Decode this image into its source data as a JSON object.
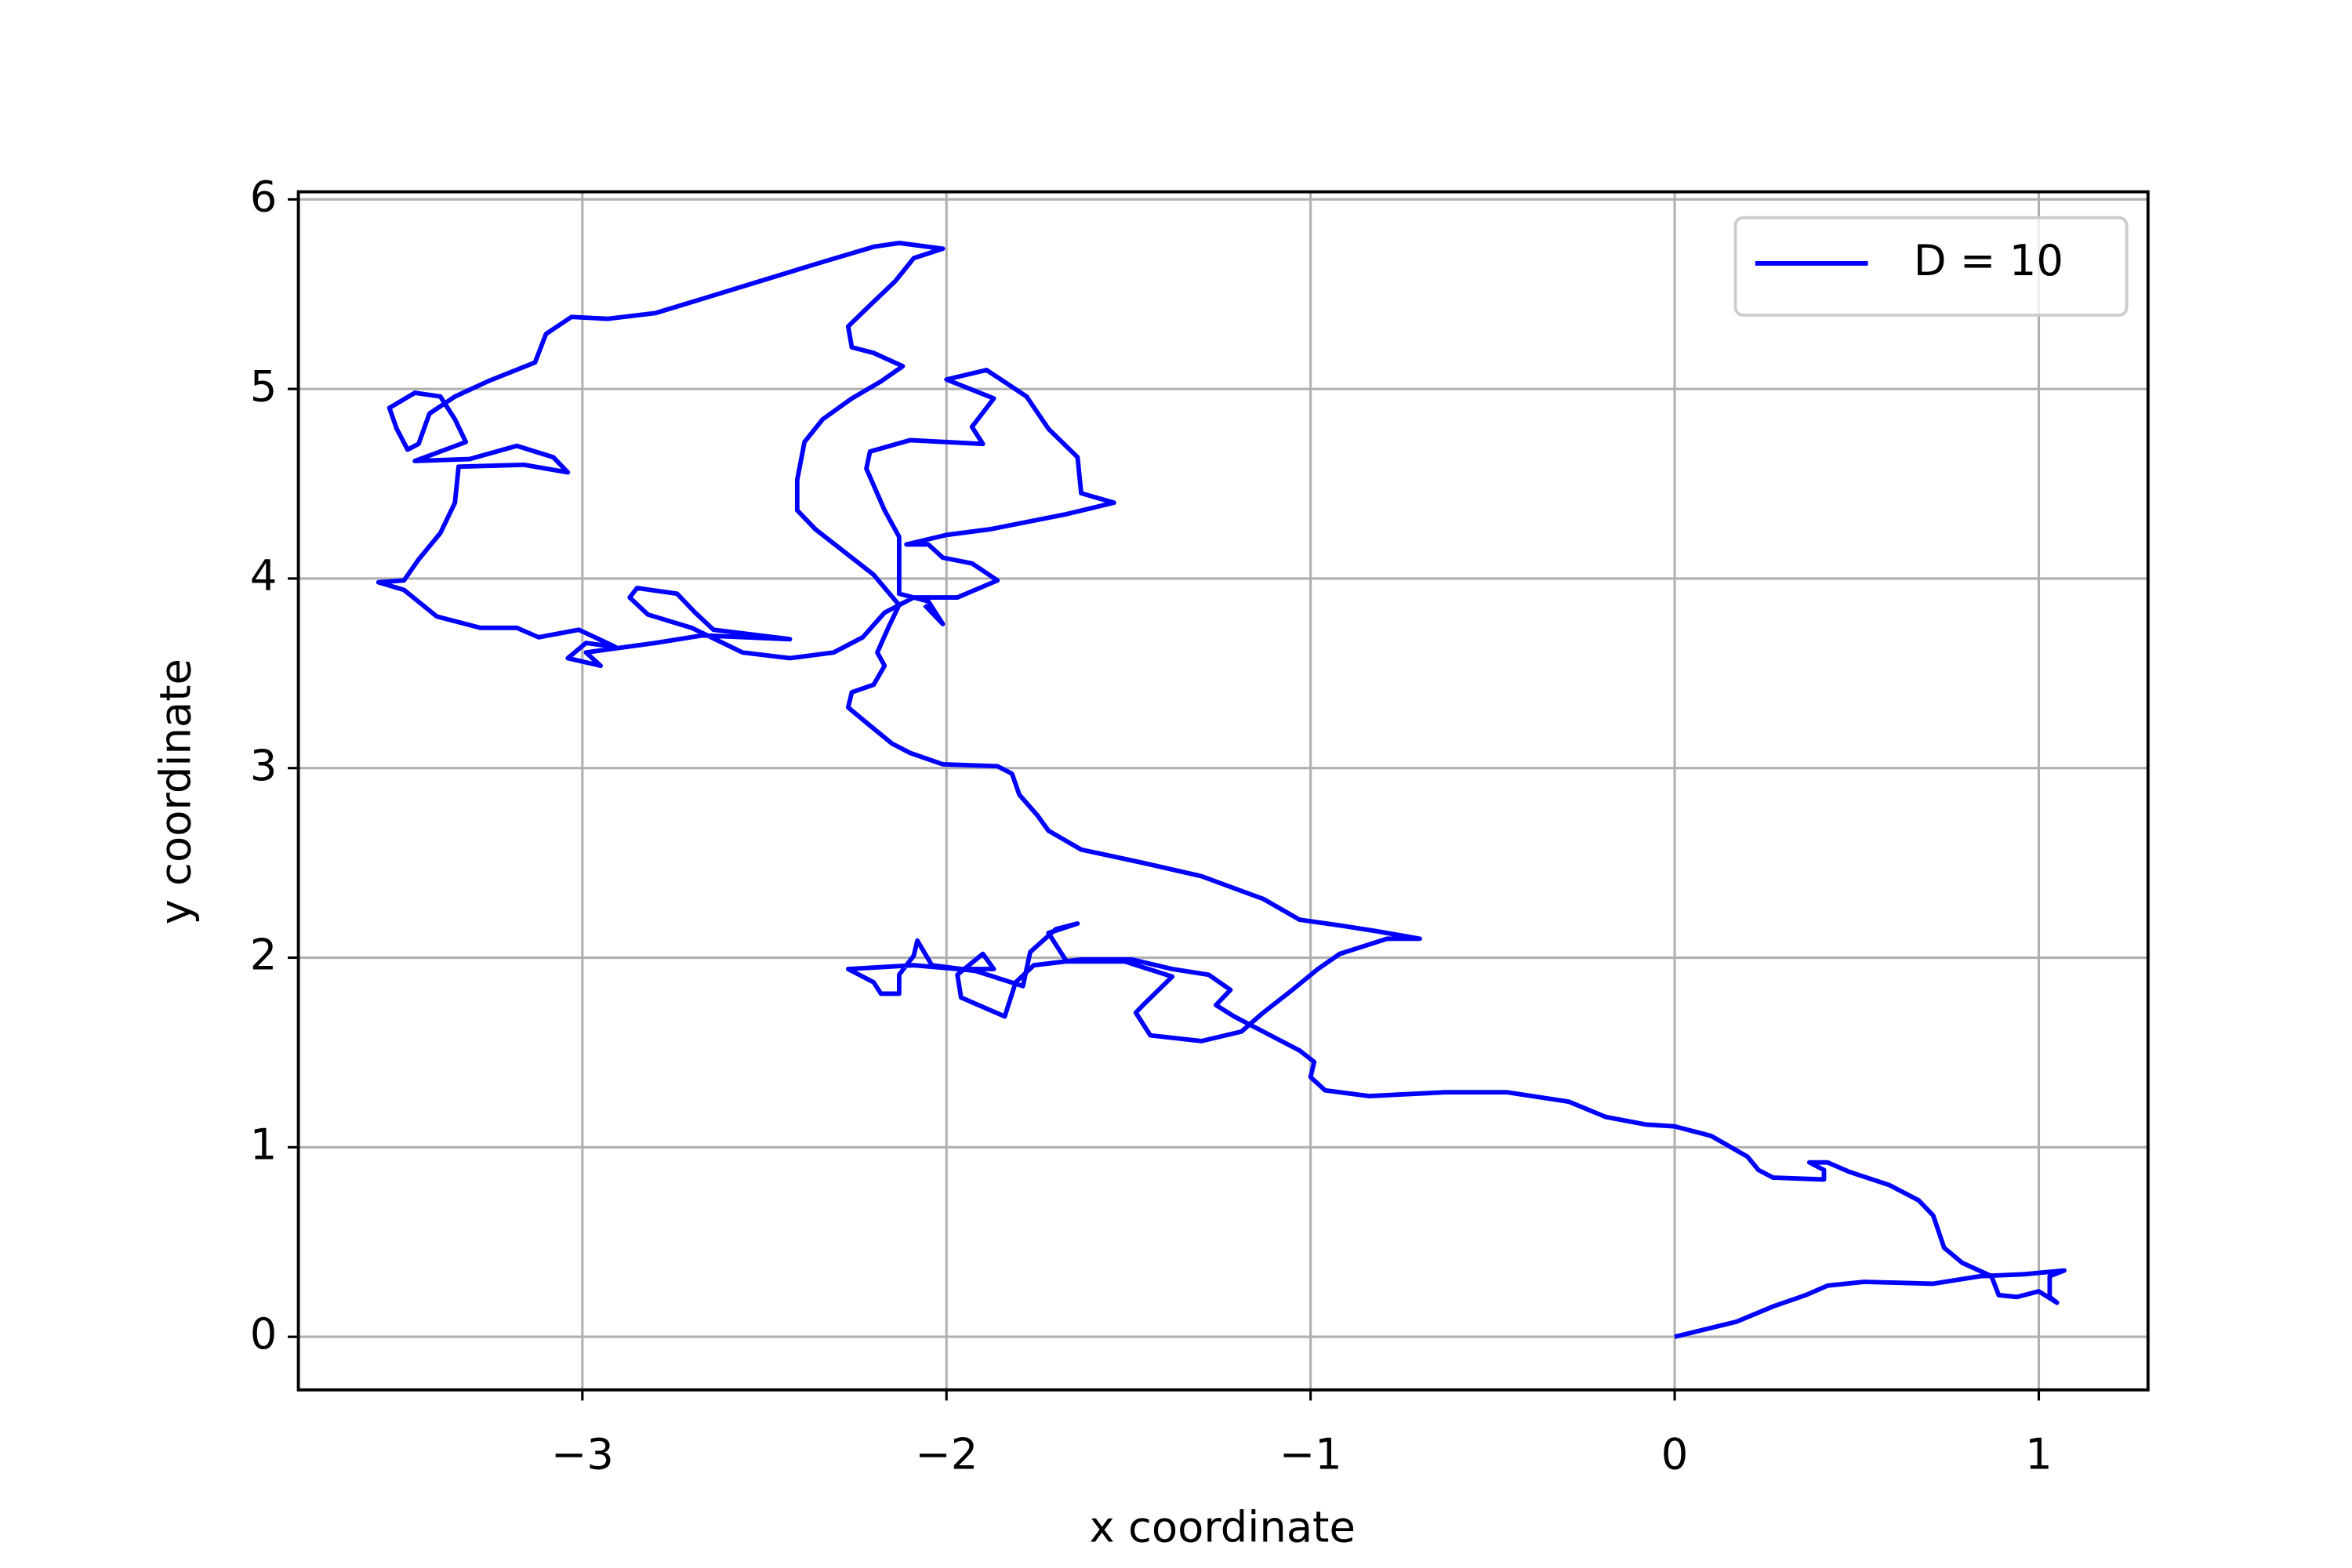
{
  "chart_data": {
    "type": "line",
    "xlabel": "x coordinate",
    "ylabel": "y coordinate",
    "xlim": [
      -3.78,
      1.3
    ],
    "ylim": [
      -0.28,
      6.04
    ],
    "xticks": [
      {
        "value": -3,
        "label": "−3"
      },
      {
        "value": -2,
        "label": "−2"
      },
      {
        "value": -1,
        "label": "−1"
      },
      0,
      1
    ],
    "yticks": [
      0,
      1,
      2,
      3,
      4,
      5,
      6
    ],
    "grid": true,
    "legend": "upper right",
    "x": [
      0,
      0.17,
      0.27,
      0.36,
      0.42,
      0.52,
      0.71,
      0.84,
      0.96,
      1.07,
      1.03,
      1.03,
      1.05,
      1.0,
      0.94,
      0.89,
      0.87,
      0.79,
      0.74,
      0.71,
      0.67,
      0.59,
      0.48,
      0.42,
      0.37,
      0.41,
      0.41,
      0.27,
      0.23,
      0.2,
      0.1,
      0,
      -0.08,
      -0.19,
      -0.29,
      -0.46,
      -0.63,
      -0.84,
      -0.96,
      -1.0,
      -0.99,
      -1.03,
      -1.13,
      -1.21,
      -1.26,
      -1.22,
      -1.28,
      -1.38,
      -1.49,
      -1.63,
      -1.76,
      -1.81,
      -1.84,
      -1.96,
      -1.97,
      -1.9,
      -1.87,
      -1.97,
      -2.09,
      -2.27,
      -2.2,
      -2.18,
      -2.13,
      -2.13,
      -2.09,
      -2.08,
      -2.04,
      -1.92,
      -1.79,
      -1.77,
      -1.7,
      -1.64,
      -1.72,
      -1.67,
      -1.51,
      -1.38,
      -1.46,
      -1.48,
      -1.44,
      -1.3,
      -1.19,
      -1.13,
      -1.05,
      -0.98,
      -0.92,
      -0.79,
      -0.7,
      -0.82,
      -0.92,
      -1.03,
      -1.13,
      -1.3,
      -1.46,
      -1.63,
      -1.72,
      -1.75,
      -1.8,
      -1.82,
      -1.86,
      -2.01,
      -2.1,
      -2.15,
      -2.22,
      -2.27,
      -2.26,
      -2.2,
      -2.17,
      -2.19,
      -2.16,
      -2.13,
      -2.2,
      -2.28,
      -2.36,
      -2.41,
      -2.41,
      -2.39,
      -2.34,
      -2.26,
      -2.18,
      -2.12,
      -2.2,
      -2.26,
      -2.27,
      -2.2,
      -2.14,
      -2.09,
      -2.01,
      -2.13,
      -2.2,
      -2.34,
      -2.51,
      -2.68,
      -2.8,
      -2.93,
      -3.03,
      -3.1,
      -3.13,
      -3.26,
      -3.35,
      -3.42,
      -3.45,
      -3.48,
      -3.51,
      -3.53,
      -3.46,
      -3.39,
      -3.35,
      -3.32,
      -3.46,
      -3.31,
      -3.18,
      -3.08,
      -3.04,
      -3.16,
      -3.34,
      -3.35,
      -3.39,
      -3.45,
      -3.49,
      -3.56,
      -3.49,
      -3.4,
      -3.28,
      -3.18,
      -3.12,
      -3.01,
      -2.91,
      -2.99,
      -3.04,
      -2.95,
      -2.99,
      -2.8,
      -2.67,
      -2.43,
      -2.64,
      -2.69,
      -2.74,
      -2.85,
      -2.87,
      -2.82,
      -2.7,
      -2.56,
      -2.43,
      -2.31,
      -2.23,
      -2.17,
      -2.09,
      -1.97,
      -1.86,
      -1.93,
      -2.01,
      -2.05,
      -2.11,
      -2.0,
      -1.88,
      -1.67,
      -1.54,
      -1.63,
      -1.64,
      -1.72,
      -1.78,
      -1.89,
      -2.0,
      -1.87,
      -1.93,
      -1.9,
      -2.1,
      -2.21,
      -2.22,
      -2.17,
      -2.13,
      -2.13,
      -2.05,
      -2.01,
      -2.06
    ],
    "series": [
      {
        "name": "D = 10",
        "color": "#0000ff",
        "values": [
          0,
          0.08,
          0.16,
          0.22,
          0.27,
          0.29,
          0.28,
          0.32,
          0.33,
          0.35,
          0.32,
          0.21,
          0.18,
          0.24,
          0.21,
          0.22,
          0.32,
          0.39,
          0.47,
          0.64,
          0.72,
          0.8,
          0.87,
          0.92,
          0.92,
          0.88,
          0.83,
          0.84,
          0.88,
          0.95,
          1.06,
          1.11,
          1.12,
          1.16,
          1.24,
          1.29,
          1.29,
          1.27,
          1.3,
          1.37,
          1.45,
          1.51,
          1.61,
          1.69,
          1.75,
          1.83,
          1.91,
          1.94,
          1.99,
          1.99,
          1.96,
          1.87,
          1.69,
          1.79,
          1.91,
          2.02,
          1.94,
          1.94,
          1.96,
          1.94,
          1.87,
          1.81,
          1.81,
          1.91,
          2.01,
          2.09,
          1.96,
          1.93,
          1.85,
          2.03,
          2.15,
          2.18,
          2.13,
          1.98,
          1.98,
          1.9,
          1.75,
          1.71,
          1.59,
          1.56,
          1.61,
          1.71,
          1.83,
          1.94,
          2.02,
          2.1,
          2.1,
          2.14,
          2.17,
          2.2,
          2.31,
          2.43,
          2.5,
          2.57,
          2.67,
          2.75,
          2.86,
          2.97,
          3.01,
          3.02,
          3.08,
          3.13,
          3.24,
          3.32,
          3.4,
          3.44,
          3.54,
          3.61,
          3.74,
          3.86,
          4.02,
          4.14,
          4.26,
          4.36,
          4.52,
          4.72,
          4.84,
          4.95,
          5.04,
          5.12,
          5.19,
          5.22,
          5.33,
          5.46,
          5.57,
          5.69,
          5.74,
          5.77,
          5.75,
          5.67,
          5.57,
          5.47,
          5.4,
          5.37,
          5.38,
          5.29,
          5.14,
          5.04,
          4.96,
          4.87,
          4.71,
          4.68,
          4.79,
          4.9,
          4.98,
          4.96,
          4.84,
          4.72,
          4.62,
          4.63,
          4.7,
          4.64,
          4.56,
          4.6,
          4.59,
          4.4,
          4.24,
          4.1,
          3.99,
          3.98,
          3.94,
          3.8,
          3.74,
          3.74,
          3.69,
          3.73,
          3.64,
          3.66,
          3.58,
          3.54,
          3.61,
          3.66,
          3.7,
          3.68,
          3.73,
          3.82,
          3.92,
          3.95,
          3.9,
          3.81,
          3.74,
          3.61,
          3.58,
          3.61,
          3.69,
          3.82,
          3.9,
          3.9,
          3.99,
          4.08,
          4.11,
          4.18,
          4.18,
          4.23,
          4.26,
          4.34,
          4.4,
          4.45,
          4.64,
          4.79,
          4.96,
          5.1,
          5.05,
          4.95,
          4.8,
          4.71,
          4.73,
          4.67,
          4.58,
          4.36,
          4.22,
          3.92,
          3.88,
          3.76,
          3.86
        ]
      }
    ]
  }
}
